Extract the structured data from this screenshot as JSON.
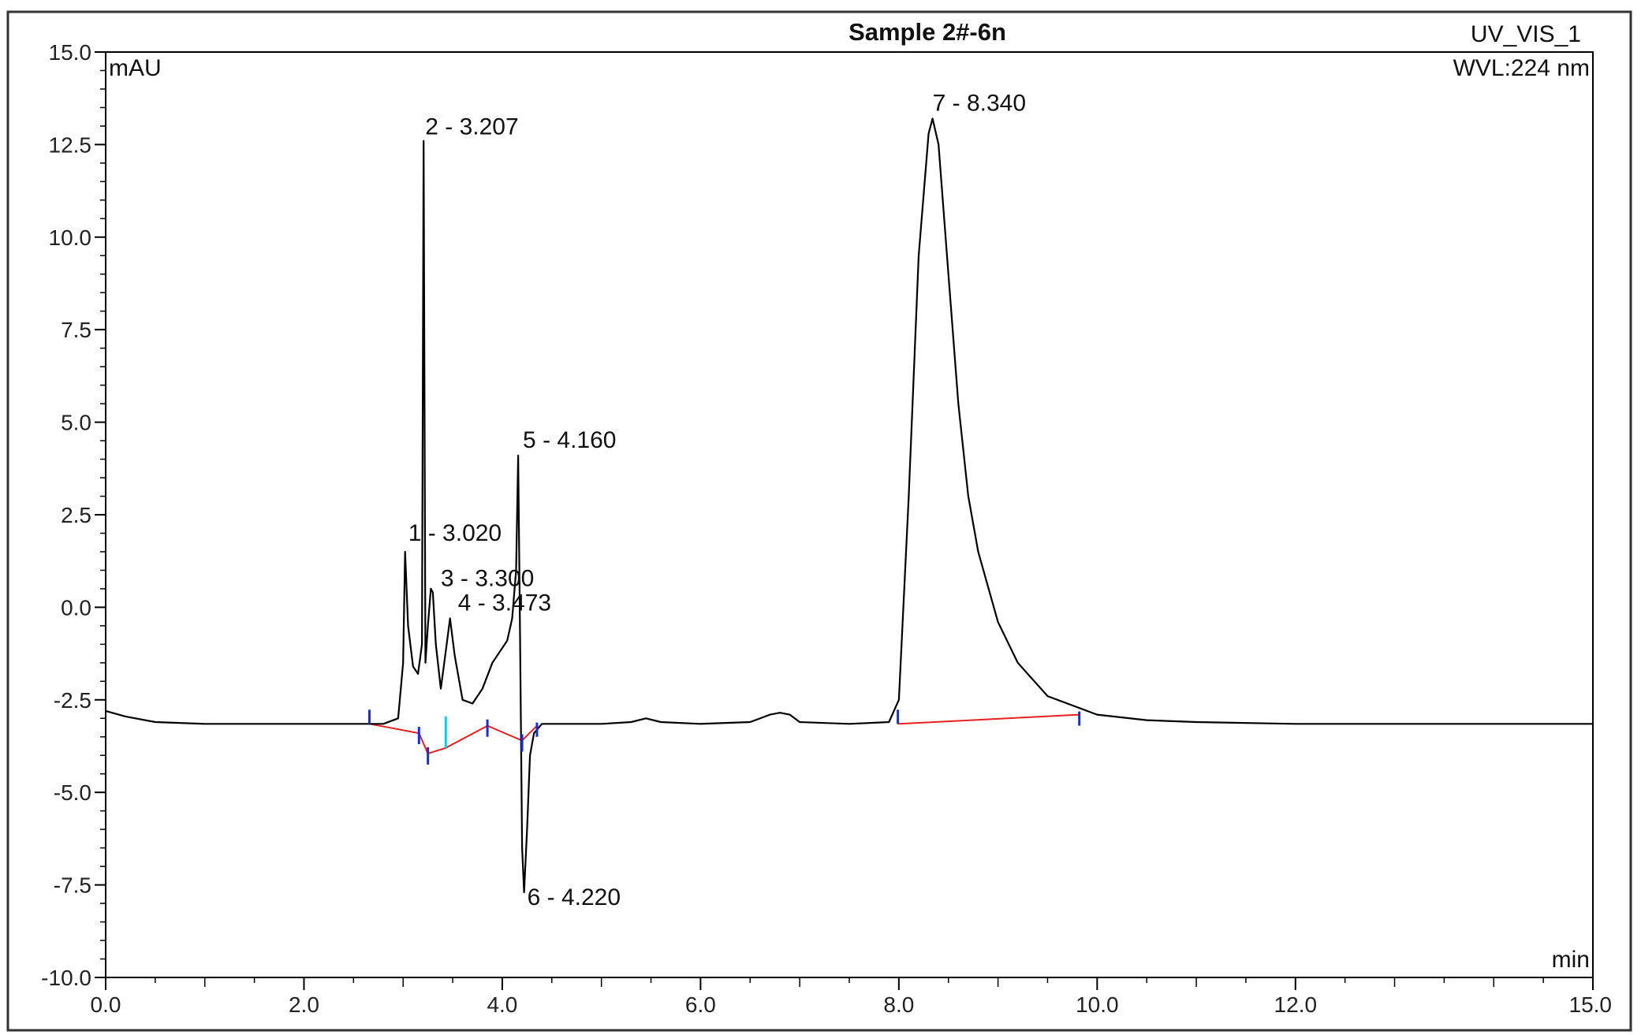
{
  "chart_data": {
    "type": "line",
    "title": "Sample 2#-6n",
    "channel": "UV_VIS_1",
    "wavelength": "WVL:224 nm",
    "ylabel": "mAU",
    "xlabel": "min",
    "xlim": [
      0,
      15
    ],
    "ylim": [
      -10,
      15
    ],
    "x_ticks": [
      "0.0",
      "2.0",
      "4.0",
      "6.0",
      "8.0",
      "10.0",
      "12.0",
      "15.0"
    ],
    "y_ticks": [
      "15.0",
      "12.5",
      "10.0",
      "7.5",
      "5.0",
      "2.5",
      "0.0",
      "-2.5",
      "-5.0",
      "-7.5",
      "-10.0"
    ],
    "grid": false,
    "colors": {
      "signal": "#000000",
      "baseline": "#e8201f",
      "marker": "#1c2bd9",
      "marker_alt": "#18c9e0"
    },
    "series": [
      {
        "name": "UV_VIS_1",
        "x": [
          0.0,
          0.2,
          0.5,
          1.0,
          1.5,
          2.0,
          2.5,
          2.8,
          2.95,
          3.0,
          3.02,
          3.05,
          3.1,
          3.15,
          3.19,
          3.207,
          3.225,
          3.25,
          3.28,
          3.3,
          3.33,
          3.38,
          3.42,
          3.473,
          3.52,
          3.6,
          3.7,
          3.8,
          3.9,
          4.0,
          4.05,
          4.1,
          4.14,
          4.16,
          4.18,
          4.2,
          4.22,
          4.25,
          4.28,
          4.32,
          4.4,
          4.6,
          5.0,
          5.3,
          5.45,
          5.6,
          6.0,
          6.5,
          6.7,
          6.8,
          6.9,
          7.0,
          7.5,
          7.9,
          8.0,
          8.1,
          8.2,
          8.3,
          8.34,
          8.4,
          8.5,
          8.6,
          8.7,
          8.8,
          9.0,
          9.2,
          9.5,
          10.0,
          10.5,
          11.0,
          12.0,
          13.0,
          14.0,
          15.0
        ],
        "y": [
          -2.8,
          -2.95,
          -3.1,
          -3.15,
          -3.15,
          -3.15,
          -3.15,
          -3.15,
          -3.0,
          -1.5,
          1.5,
          -0.5,
          -1.6,
          -1.8,
          -1.0,
          12.6,
          -1.5,
          -0.5,
          0.5,
          0.4,
          -1.0,
          -2.2,
          -1.4,
          -0.3,
          -1.3,
          -2.5,
          -2.6,
          -2.2,
          -1.5,
          -1.1,
          -0.9,
          -0.3,
          1.0,
          4.1,
          -1.0,
          -6.5,
          -7.7,
          -6.0,
          -4.0,
          -3.4,
          -3.15,
          -3.15,
          -3.15,
          -3.1,
          -3.0,
          -3.1,
          -3.15,
          -3.1,
          -2.9,
          -2.85,
          -2.9,
          -3.1,
          -3.15,
          -3.1,
          -2.5,
          3.0,
          9.5,
          12.8,
          13.2,
          12.5,
          9.0,
          5.5,
          3.0,
          1.5,
          -0.4,
          -1.5,
          -2.4,
          -2.9,
          -3.05,
          -3.1,
          -3.15,
          -3.15,
          -3.15,
          -3.15
        ]
      }
    ],
    "peaks": [
      {
        "label": "1 - 3.020",
        "x": 3.02,
        "y": 1.5
      },
      {
        "label": "2 - 3.207",
        "x": 3.207,
        "y": 12.6
      },
      {
        "label": "3 - 3.300",
        "x": 3.3,
        "y": 0.4
      },
      {
        "label": "4 - 3.473",
        "x": 3.473,
        "y": -0.3
      },
      {
        "label": "5 - 4.160",
        "x": 4.16,
        "y": 4.1
      },
      {
        "label": "6 - 4.220",
        "x": 4.22,
        "y": -7.7
      },
      {
        "label": "7 - 8.340",
        "x": 8.34,
        "y": 13.2
      }
    ],
    "baselines": [
      {
        "x": [
          2.66,
          3.16,
          3.25,
          3.43,
          3.85
        ],
        "y": [
          -3.15,
          -3.4,
          -3.95,
          -3.8,
          -3.2
        ]
      },
      {
        "x": [
          3.85,
          4.2,
          4.35
        ],
        "y": [
          -3.2,
          -3.6,
          -3.2
        ]
      },
      {
        "x": [
          7.99,
          9.82
        ],
        "y": [
          -3.15,
          -2.9
        ]
      }
    ],
    "markers": [
      {
        "x": 2.66,
        "y": -3.15,
        "kind": "start"
      },
      {
        "x": 3.16,
        "y": -3.4,
        "kind": "split"
      },
      {
        "x": 3.25,
        "y": -3.95,
        "kind": "split"
      },
      {
        "x": 3.43,
        "y": -3.8,
        "kind": "split-alt"
      },
      {
        "x": 3.85,
        "y": -3.2,
        "kind": "split"
      },
      {
        "x": 4.2,
        "y": -3.6,
        "kind": "split"
      },
      {
        "x": 4.35,
        "y": -3.2,
        "kind": "end"
      },
      {
        "x": 7.99,
        "y": -3.15,
        "kind": "start"
      },
      {
        "x": 9.82,
        "y": -2.9,
        "kind": "end"
      }
    ]
  }
}
